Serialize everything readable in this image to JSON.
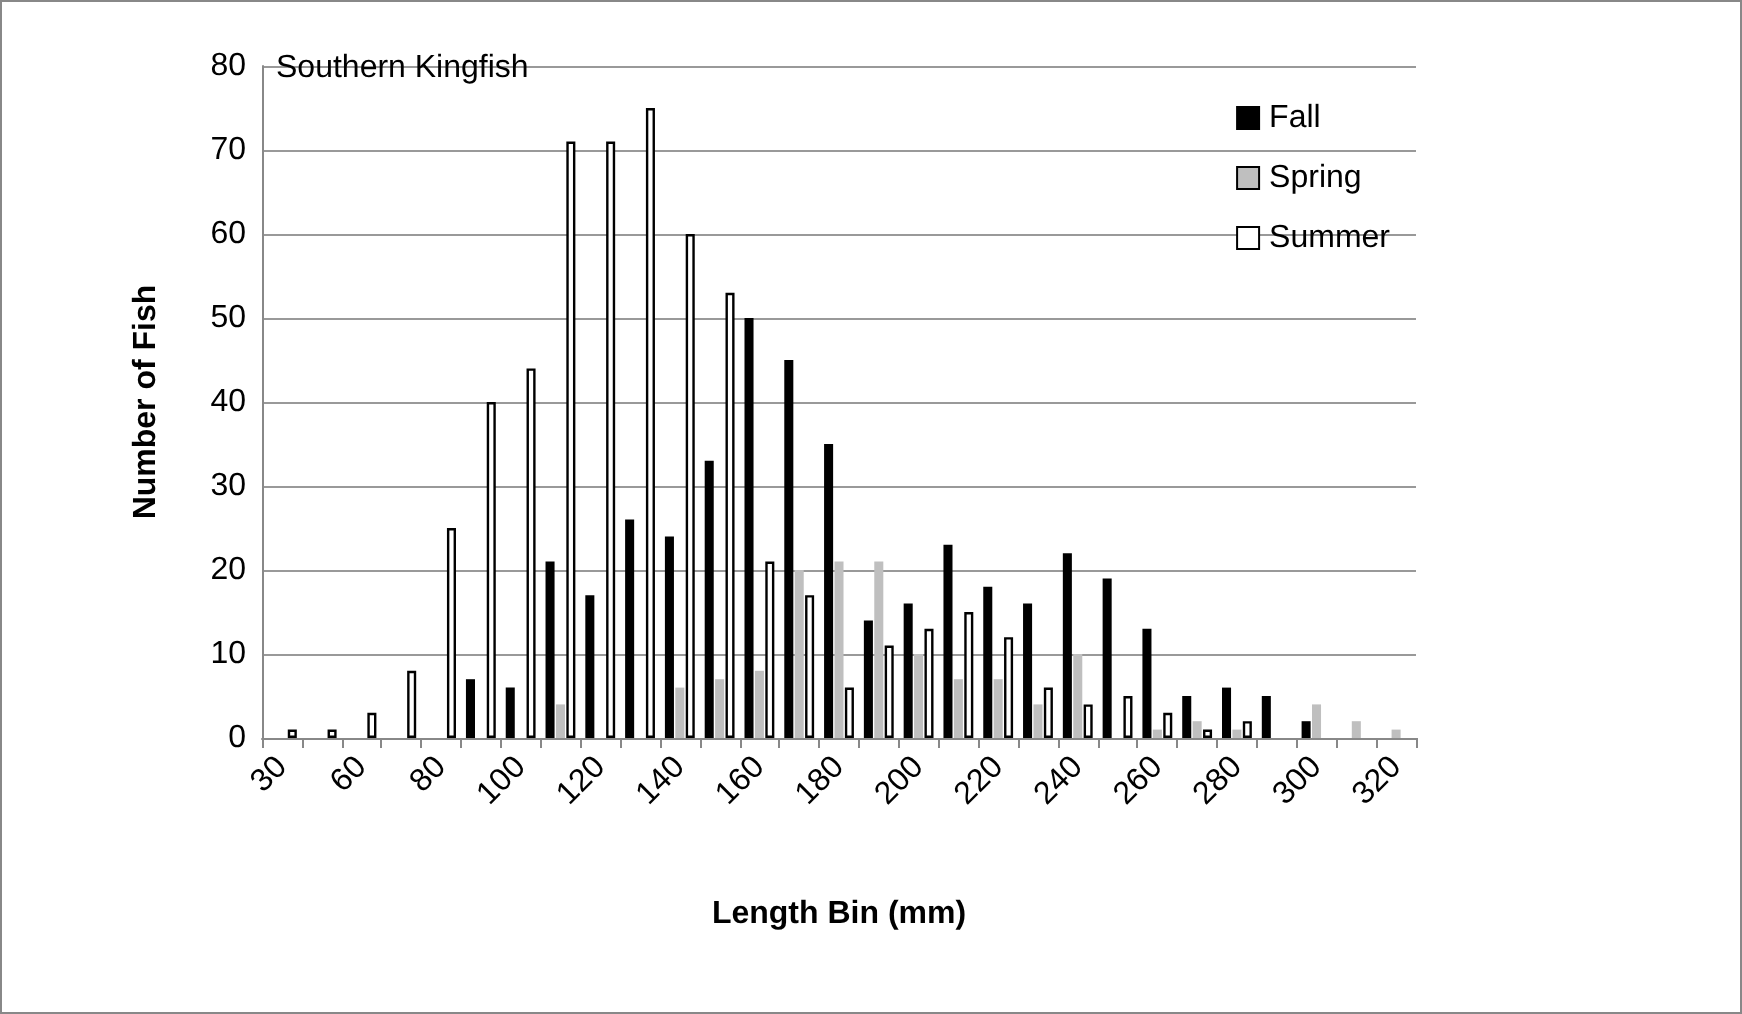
{
  "chart_data": {
    "type": "bar",
    "title": "Southern Kingfish",
    "xlabel": "Length Bin (mm)",
    "ylabel": "Number of Fish",
    "categories": [
      "30",
      null,
      "60",
      null,
      "80",
      null,
      "100",
      null,
      "120",
      null,
      "140",
      null,
      "160",
      null,
      "180",
      null,
      "200",
      null,
      "220",
      null,
      "240",
      null,
      "260",
      null,
      "280",
      null,
      "300",
      null,
      "320"
    ],
    "series": [
      {
        "name": "Fall",
        "color": "#000000",
        "values": [
          0,
          0,
          0,
          0,
          0,
          7,
          6,
          21,
          17,
          26,
          24,
          33,
          50,
          45,
          35,
          14,
          16,
          23,
          18,
          16,
          22,
          19,
          13,
          5,
          6,
          5,
          2,
          0,
          0
        ]
      },
      {
        "name": "Spring",
        "color": "#bfbfbf",
        "values": [
          0,
          0,
          0,
          0,
          0,
          0,
          0,
          4,
          0,
          0,
          6,
          7,
          8,
          20,
          21,
          21,
          10,
          7,
          7,
          4,
          10,
          0,
          1,
          2,
          1,
          0,
          4,
          2,
          1
        ]
      },
      {
        "name": "Summer",
        "color": "#ffffff",
        "values": [
          1,
          1,
          3,
          8,
          25,
          40,
          44,
          71,
          71,
          75,
          60,
          53,
          21,
          17,
          6,
          11,
          13,
          15,
          12,
          6,
          4,
          5,
          3,
          1,
          2,
          0,
          0,
          0,
          0
        ]
      }
    ],
    "ylim": [
      0,
      80
    ],
    "yticks": [
      0,
      10,
      20,
      30,
      40,
      50,
      60,
      70,
      80
    ],
    "grid": "y",
    "legend": "top right"
  }
}
